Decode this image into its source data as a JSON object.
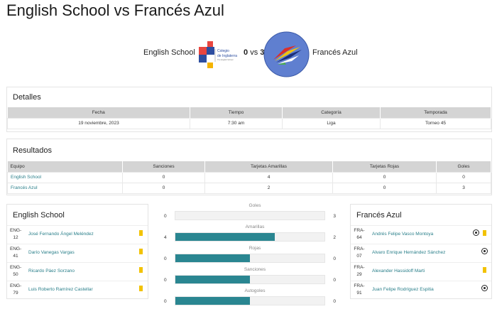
{
  "page_title": "English School vs Francés Azul",
  "match": {
    "home": "English School",
    "score_home": "0",
    "vs": "vs",
    "score_away": "3",
    "away": "Francés Azul",
    "home_logo_text": [
      "Colegio",
      "de Inglaterra",
      "The English School"
    ]
  },
  "details": {
    "title": "Detalles",
    "headers": [
      "Fecha",
      "Tiempo",
      "Categoría",
      "Temporada"
    ],
    "values": [
      "19 noviembre, 2023",
      "7:30 am",
      "Liga",
      "Torneo 45"
    ]
  },
  "results": {
    "title": "Resultados",
    "headers": [
      "Equipo",
      "Sanciones",
      "Tarjetas Amarillas",
      "Tarjetas Rojas",
      "Goles"
    ],
    "rows": [
      [
        "English School",
        "0",
        "4",
        "0",
        "0"
      ],
      [
        "Francés Azul",
        "0",
        "2",
        "0",
        "3"
      ]
    ]
  },
  "home_roster": {
    "title": "English School",
    "players": [
      {
        "code1": "ENG-",
        "code2": "12",
        "name": "José Fernando Ángel Meléndez",
        "yellow": true
      },
      {
        "code1": "ENG-",
        "code2": "41",
        "name": "Darío Vanegas Vargas",
        "yellow": true
      },
      {
        "code1": "ENG-",
        "code2": "50",
        "name": "Ricardo Páez Sorzano",
        "yellow": true
      },
      {
        "code1": "ENG-",
        "code2": "79",
        "name": "Luis Roberto Ramírez Castellar",
        "yellow": true
      }
    ]
  },
  "away_roster": {
    "title": "Francés Azul",
    "players": [
      {
        "code1": "FRA-",
        "code2": "64",
        "name": "Andrés Felipe Vasco Montoya",
        "goal": true,
        "yellow": true
      },
      {
        "code1": "FRA-",
        "code2": "07",
        "name": "Alvaro Enrique Hernández Sánchez",
        "goal": true,
        "yellow": false
      },
      {
        "code1": "FRA-",
        "code2": "29",
        "name": "Alexander Hassidoff Marti",
        "goal": false,
        "yellow": true
      },
      {
        "code1": "FRA-",
        "code2": "91",
        "name": "Juan Felipe Rodríguez Espitia",
        "goal": true,
        "yellow": false
      }
    ]
  },
  "stats": [
    {
      "label": "Goles",
      "home": "0",
      "away": "3",
      "home_share": 0.0
    },
    {
      "label": "Amarillas",
      "home": "4",
      "away": "2",
      "home_share": 0.667
    },
    {
      "label": "Rojas",
      "home": "0",
      "away": "0",
      "home_share": 0.5
    },
    {
      "label": "Sanciones",
      "home": "0",
      "away": "0",
      "home_share": 0.5
    },
    {
      "label": "Autogoles",
      "home": "0",
      "away": "0",
      "home_share": 0.5
    }
  ],
  "colors": {
    "accent": "#2a8691",
    "link": "#2a7f8a",
    "yellow_card": "#f2c200",
    "header_bg": "#d4d4d4"
  }
}
